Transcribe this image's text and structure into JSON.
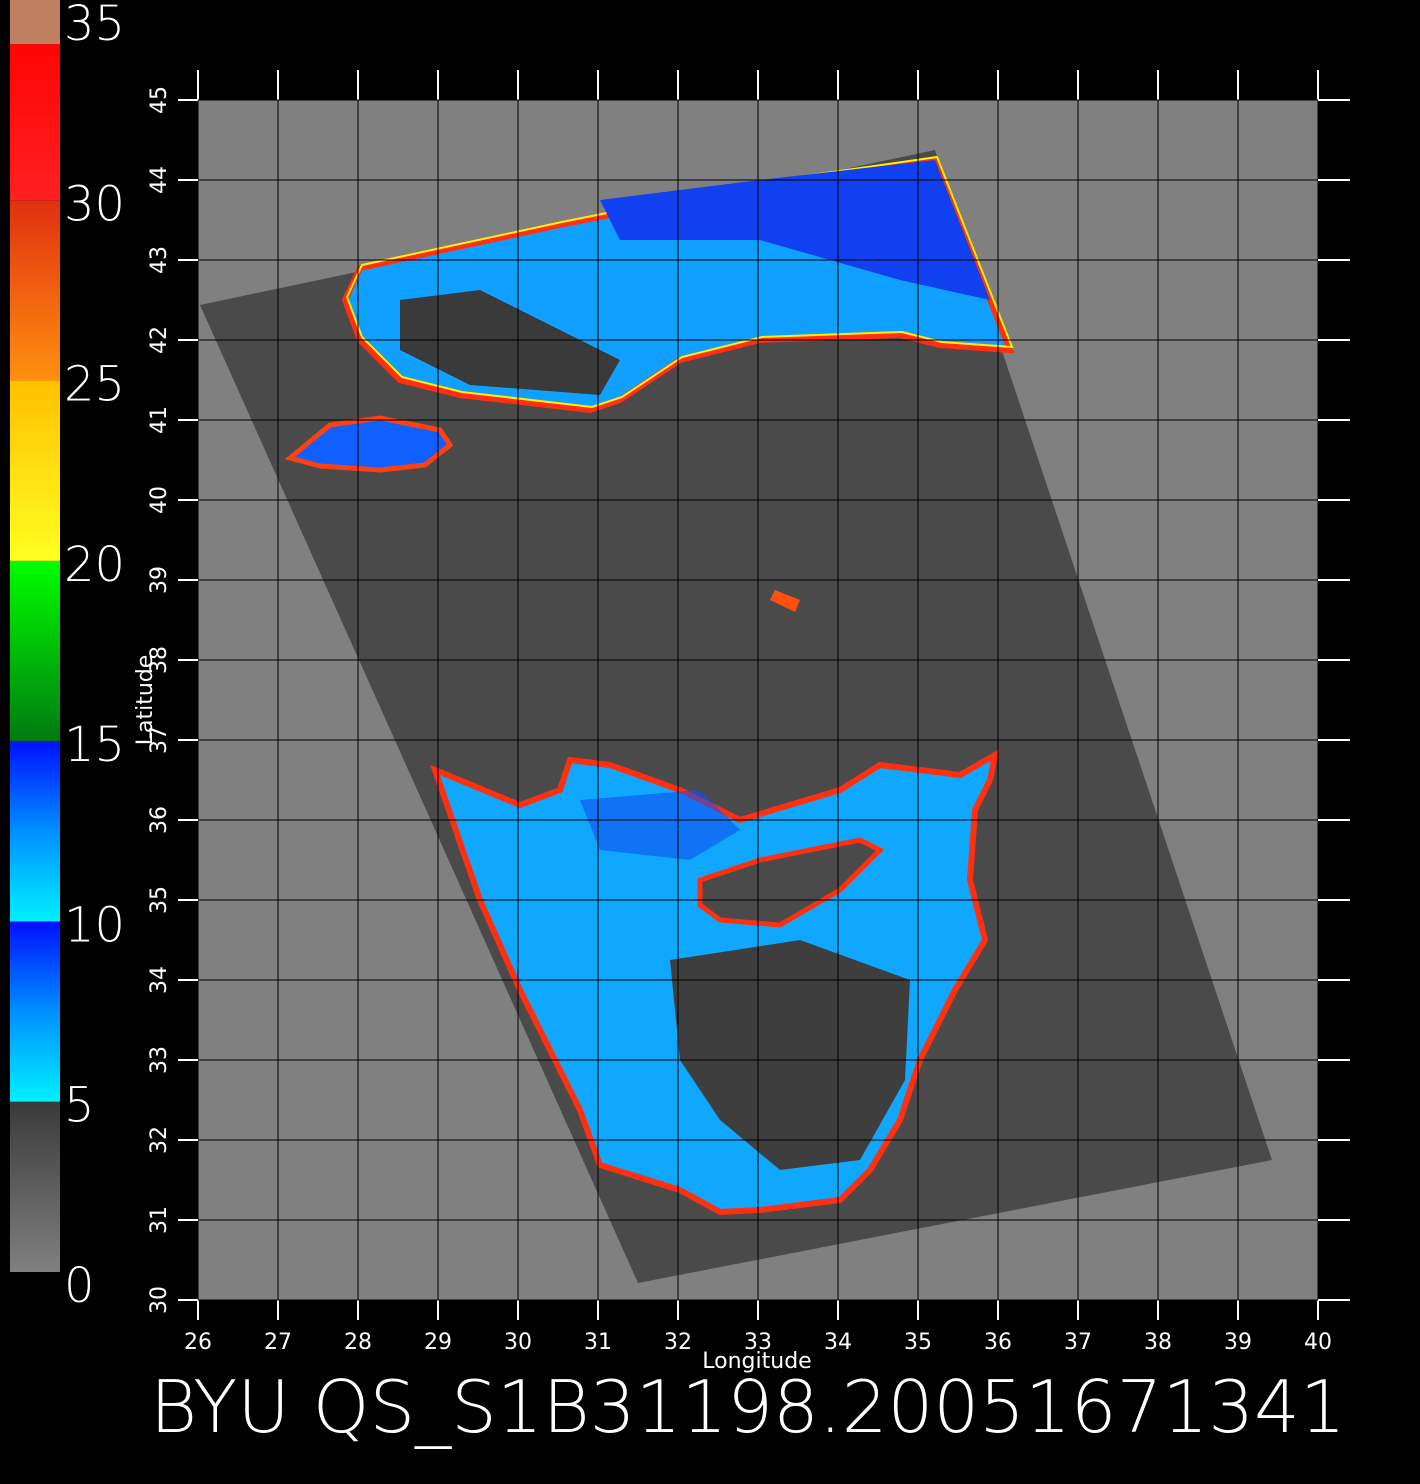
{
  "colorbar": {
    "ticks": [
      0,
      5,
      10,
      15,
      20,
      25,
      30,
      35
    ]
  },
  "map": {
    "xlabel": "Longitude",
    "ylabel": "Latitude",
    "xticks": [
      26,
      27,
      28,
      29,
      30,
      31,
      32,
      33,
      34,
      35,
      36,
      37,
      38,
      39,
      40
    ],
    "yticks": [
      30,
      31,
      32,
      33,
      34,
      35,
      36,
      37,
      38,
      39,
      40,
      41,
      42,
      43,
      44,
      45
    ]
  },
  "footer": "BYU QS_S1B31198.20051671341"
}
